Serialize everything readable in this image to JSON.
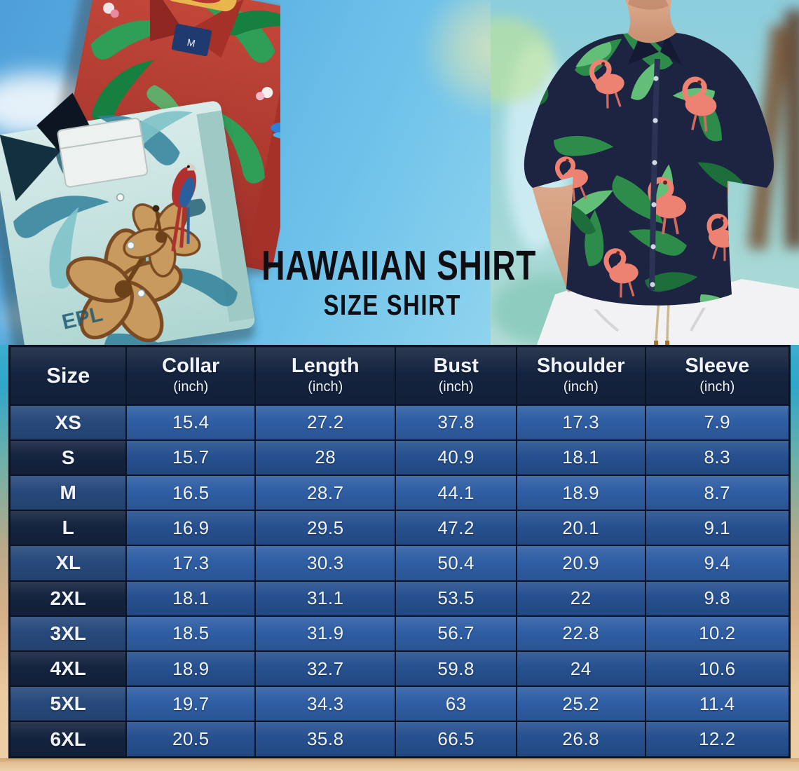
{
  "title": {
    "line1": "HAWAIIAN SHIRT",
    "line2": "SIZE SHIRT"
  },
  "table": {
    "columns": [
      {
        "label": "Size",
        "sub": ""
      },
      {
        "label": "Collar",
        "sub": "(inch)"
      },
      {
        "label": "Length",
        "sub": "(inch)"
      },
      {
        "label": "Bust",
        "sub": "(inch)"
      },
      {
        "label": "Shoulder",
        "sub": "(inch)"
      },
      {
        "label": "Sleeve",
        "sub": "(inch)"
      }
    ],
    "rows": [
      {
        "size": "XS",
        "values": [
          "15.4",
          "27.2",
          "37.8",
          "17.3",
          "7.9"
        ]
      },
      {
        "size": "S",
        "values": [
          "15.7",
          "28",
          "40.9",
          "18.1",
          "8.3"
        ]
      },
      {
        "size": "M",
        "values": [
          "16.5",
          "28.7",
          "44.1",
          "18.9",
          "8.7"
        ]
      },
      {
        "size": "L",
        "values": [
          "16.9",
          "29.5",
          "47.2",
          "20.1",
          "9.1"
        ]
      },
      {
        "size": "XL",
        "values": [
          "17.3",
          "30.3",
          "50.4",
          "20.9",
          "9.4"
        ]
      },
      {
        "size": "2XL",
        "values": [
          "18.1",
          "31.1",
          "53.5",
          "22",
          "9.8"
        ]
      },
      {
        "size": "3XL",
        "values": [
          "18.5",
          "31.9",
          "56.7",
          "22.8",
          "10.2"
        ]
      },
      {
        "size": "4XL",
        "values": [
          "18.9",
          "32.7",
          "59.8",
          "24",
          "10.6"
        ]
      },
      {
        "size": "5XL",
        "values": [
          "19.7",
          "34.3",
          "63",
          "25.2",
          "11.4"
        ]
      },
      {
        "size": "6XL",
        "values": [
          "20.5",
          "35.8",
          "66.5",
          "26.8",
          "12.2"
        ]
      }
    ]
  },
  "chart_data": {
    "type": "table",
    "title": "HAWAIIAN SHIRT — SIZE SHIRT",
    "columns": [
      "Size",
      "Collar (inch)",
      "Length (inch)",
      "Bust (inch)",
      "Shoulder (inch)",
      "Sleeve (inch)"
    ],
    "rows": [
      [
        "XS",
        15.4,
        27.2,
        37.8,
        17.3,
        7.9
      ],
      [
        "S",
        15.7,
        28,
        40.9,
        18.1,
        8.3
      ],
      [
        "M",
        16.5,
        28.7,
        44.1,
        18.9,
        8.7
      ],
      [
        "L",
        16.9,
        29.5,
        47.2,
        20.1,
        9.1
      ],
      [
        "XL",
        17.3,
        30.3,
        50.4,
        20.9,
        9.4
      ],
      [
        "2XL",
        18.1,
        31.1,
        53.5,
        22,
        9.8
      ],
      [
        "3XL",
        18.5,
        31.9,
        56.7,
        22.8,
        10.2
      ],
      [
        "4XL",
        18.9,
        32.7,
        59.8,
        24,
        10.6
      ],
      [
        "5XL",
        19.7,
        34.3,
        63,
        25.2,
        11.4
      ],
      [
        "6XL",
        20.5,
        35.8,
        66.5,
        26.8,
        12.2
      ]
    ]
  },
  "photos": {
    "left": "Two folded Hawaiian shirts — a red one with tropical leaves and flowers, a teal one with hibiscus flowers and parrots",
    "right": "Man wearing a navy Hawaiian shirt with green tropical leaves and pink flamingos, white pants",
    "teal_shirt_print": "EPL",
    "red_shirt_size_tag": "M"
  },
  "colors": {
    "header_bg": "#14233F",
    "table_border": "#0B1322",
    "row_odd_label_bg": "#27497B",
    "row_odd_value_bg": "#2F5EA4",
    "row_even_label_bg": "#14233F",
    "row_even_value_bg": "#26508F",
    "title_color": "#0D0D12",
    "sand": "#E9C9A2",
    "sky": "#6EC2EA",
    "shirt_red": "#B5362E",
    "shirt_teal": "#C3E3DF",
    "model_shirt_navy": "#1C2442",
    "leaf_green": "#3F9E5A",
    "flamingo": "#EE8272",
    "pants_white": "#F2F2F4"
  }
}
